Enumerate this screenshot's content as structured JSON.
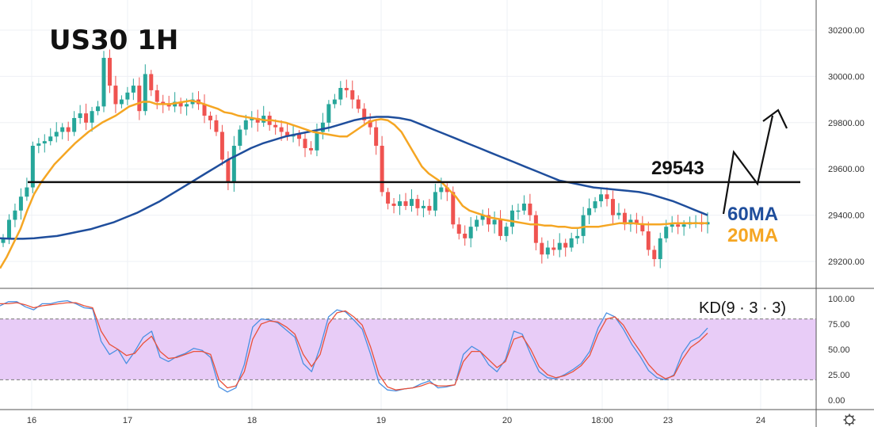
{
  "chart_data": [
    {
      "type": "candlestick",
      "title": "US30 1H",
      "y_axis_side": "right",
      "yticks": [
        29200,
        29400,
        29600,
        29800,
        30000,
        30200
      ],
      "ytick_labels": [
        "29200.00",
        "29400.00",
        "29600.00",
        "29800.00",
        "30000.00",
        "30200.00"
      ],
      "ylim": [
        29100,
        30300
      ],
      "x_tick_labels": [
        "16",
        "17",
        "18",
        "19",
        "20",
        "18:00",
        "23",
        "24"
      ],
      "grid": true,
      "colors": {
        "up": "#26a69a",
        "down": "#ef5350",
        "ma20": "#f5a623",
        "ma60": "#1f4e9c",
        "line": "#111111"
      },
      "candles_close": [
        29300,
        29380,
        29420,
        29480,
        29520,
        29700,
        29710,
        29720,
        29740,
        29760,
        29780,
        29760,
        29820,
        29840,
        29800,
        29850,
        29870,
        30080,
        29960,
        29880,
        29900,
        29930,
        29960,
        29850,
        30010,
        29940,
        29890,
        29880,
        29870,
        29890,
        29870,
        29880,
        29900,
        29880,
        29830,
        29810,
        29760,
        29640,
        29540,
        29700,
        29770,
        29810,
        29820,
        29800,
        29830,
        29790,
        29780,
        29760,
        29740,
        29750,
        29730,
        29690,
        29680,
        29760,
        29800,
        29880,
        29900,
        29950,
        29940,
        29900,
        29860,
        29810,
        29780,
        29700,
        29500,
        29450,
        29440,
        29460,
        29440,
        29470,
        29430,
        29440,
        29420,
        29500,
        29520,
        29500,
        29360,
        29320,
        29300,
        29350,
        29380,
        29400,
        29360,
        29380,
        29310,
        29350,
        29420,
        29420,
        29450,
        29400,
        29280,
        29230,
        29260,
        29250,
        29280,
        29260,
        29300,
        29310,
        29400,
        29430,
        29460,
        29490,
        29470,
        29400,
        29410,
        29360,
        29380,
        29360,
        29330,
        29250,
        29210,
        29300,
        29350,
        29360,
        29350,
        29360,
        29370,
        29370,
        29360,
        29370
      ],
      "series": [
        {
          "name": "20MA",
          "values": [
            29170,
            29220,
            29280,
            29340,
            29420,
            29490,
            29540,
            29580,
            29620,
            29650,
            29680,
            29710,
            29735,
            29760,
            29780,
            29800,
            29815,
            29830,
            29850,
            29870,
            29880,
            29890,
            29890,
            29880,
            29880,
            29880,
            29885,
            29890,
            29895,
            29890,
            29880,
            29870,
            29860,
            29845,
            29840,
            29830,
            29825,
            29820,
            29815,
            29810,
            29810,
            29805,
            29800,
            29790,
            29780,
            29770,
            29760,
            29755,
            29750,
            29745,
            29740,
            29740,
            29760,
            29780,
            29800,
            29810,
            29815,
            29810,
            29790,
            29760,
            29710,
            29660,
            29610,
            29580,
            29560,
            29540,
            29510,
            29480,
            29440,
            29420,
            29410,
            29400,
            29390,
            29385,
            29380,
            29375,
            29370,
            29365,
            29360,
            29360,
            29355,
            29355,
            29350,
            29350,
            29345,
            29345,
            29350,
            29350,
            29350,
            29355,
            29360,
            29365,
            29365,
            29365,
            29362,
            29360,
            29360,
            29360,
            29362,
            29365,
            29365,
            29365,
            29365,
            29365,
            29365
          ]
        },
        {
          "name": "60MA",
          "values": [
            29300,
            29298,
            29298,
            29300,
            29305,
            29310,
            29320,
            29330,
            29340,
            29355,
            29370,
            29390,
            29410,
            29435,
            29460,
            29490,
            29520,
            29550,
            29580,
            29610,
            29640,
            29665,
            29690,
            29710,
            29725,
            29740,
            29750,
            29760,
            29770,
            29780,
            29795,
            29810,
            29820,
            29825,
            29825,
            29820,
            29810,
            29790,
            29770,
            29750,
            29730,
            29710,
            29690,
            29670,
            29650,
            29630,
            29610,
            29590,
            29570,
            29550,
            29540,
            29530,
            29520,
            29515,
            29510,
            29505,
            29500,
            29490,
            29475,
            29460,
            29440,
            29420,
            29400
          ]
        }
      ],
      "kd_panel": {
        "label": "KD(9 · 3 · 3)",
        "yticks": [
          0,
          25,
          50,
          75,
          100
        ],
        "ytick_labels": [
          "0.00",
          "25.00",
          "50.00",
          "75.00",
          "100.00"
        ],
        "overbought": 80,
        "oversold": 20,
        "band_color": "#e8ccf7",
        "series": [
          {
            "name": "K",
            "color": "#4a90e2",
            "values": [
              93,
              97,
              97,
              92,
              89,
              95,
              95,
              97,
              98,
              95,
              91,
              90,
              58,
              45,
              50,
              36,
              48,
              62,
              68,
              42,
              38,
              43,
              46,
              51,
              49,
              42,
              13,
              8,
              12,
              35,
              72,
              80,
              79,
              76,
              69,
              62,
              36,
              28,
              52,
              82,
              89,
              87,
              79,
              70,
              45,
              17,
              10,
              9,
              11,
              12,
              16,
              19,
              12,
              13,
              15,
              45,
              53,
              48,
              35,
              28,
              40,
              68,
              65,
              45,
              28,
              22,
              21,
              25,
              30,
              36,
              48,
              71,
              86,
              82,
              70,
              55,
              43,
              29,
              22,
              20,
              25,
              46,
              58,
              62,
              71
            ]
          },
          {
            "name": "D",
            "color": "#e9513a",
            "values": [
              95,
              95,
              96,
              94,
              91,
              93,
              94,
              95,
              96,
              96,
              93,
              91,
              68,
              55,
              50,
              44,
              46,
              56,
              63,
              48,
              41,
              42,
              45,
              48,
              48,
              45,
              20,
              12,
              14,
              28,
              60,
              75,
              78,
              77,
              72,
              65,
              45,
              33,
              45,
              75,
              86,
              88,
              82,
              74,
              52,
              25,
              13,
              10,
              11,
              12,
              14,
              17,
              14,
              14,
              15,
              38,
              48,
              48,
              40,
              32,
              38,
              60,
              63,
              50,
              33,
              25,
              22,
              24,
              28,
              34,
              44,
              65,
              80,
              82,
              74,
              60,
              48,
              35,
              26,
              21,
              24,
              40,
              52,
              58,
              66
            ]
          }
        ]
      }
    }
  ],
  "annotations": {
    "level": "29543",
    "ma60_label": "60MA",
    "ma20_label": "20MA"
  },
  "toolbar": {
    "settings_icon": "gear-icon"
  }
}
